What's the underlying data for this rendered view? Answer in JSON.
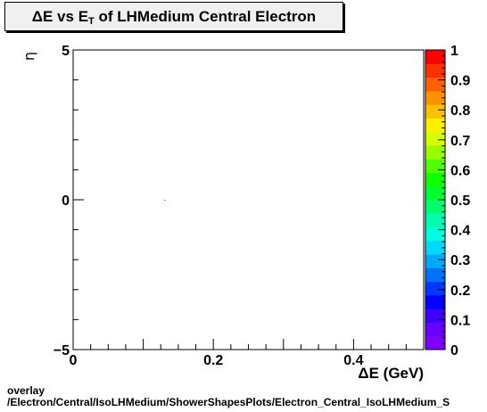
{
  "chart_data": {
    "type": "heatmap",
    "title": {
      "prefix": "ΔE vs E",
      "sub": "T",
      "suffix": " of LHMedium Central  Electron"
    },
    "xlabel": "ΔE (GeV)",
    "ylabel": "η",
    "xlim": [
      0,
      0.5
    ],
    "ylim": [
      -5,
      5
    ],
    "x_ticks": [
      {
        "value": 0,
        "label": "0"
      },
      {
        "value": 0.2,
        "label": "0.2"
      },
      {
        "value": 0.4,
        "label": "0.4"
      }
    ],
    "y_ticks": [
      {
        "value": 5,
        "label": "5"
      },
      {
        "value": 0,
        "label": "0"
      },
      {
        "value": -5,
        "label": "−5"
      }
    ],
    "z_ticks": [
      {
        "value": 0,
        "label": "0"
      },
      {
        "value": 0.1,
        "label": "0.1"
      },
      {
        "value": 0.2,
        "label": "0.2"
      },
      {
        "value": 0.3,
        "label": "0.3"
      },
      {
        "value": 0.4,
        "label": "0.4"
      },
      {
        "value": 0.5,
        "label": "0.5"
      },
      {
        "value": 0.6,
        "label": "0.6"
      },
      {
        "value": 0.7,
        "label": "0.7"
      },
      {
        "value": 0.8,
        "label": "0.8"
      },
      {
        "value": 0.9,
        "label": "0.9"
      },
      {
        "value": 1,
        "label": "1"
      }
    ],
    "zlim": [
      0,
      1
    ],
    "points": [
      {
        "x": 0.13,
        "y": 0.0
      }
    ],
    "palette": [
      "#7f00ff",
      "#6a00ff",
      "#3c00ff",
      "#0000ff",
      "#0038ff",
      "#0070ff",
      "#00a8ff",
      "#00d8ff",
      "#00ffe0",
      "#00ffb0",
      "#00ff70",
      "#00ff30",
      "#10ff00",
      "#50ff00",
      "#98ff00",
      "#d8ff00",
      "#fff000",
      "#ffc000",
      "#ff9000",
      "#ff6000",
      "#ff3000",
      "#ff0000"
    ],
    "grid": false
  },
  "footer": {
    "line1": "overlay",
    "line2": "/Electron/Central/IsoLHMedium/ShowerShapesPlots/Electron_Central_IsoLHMedium_S"
  }
}
